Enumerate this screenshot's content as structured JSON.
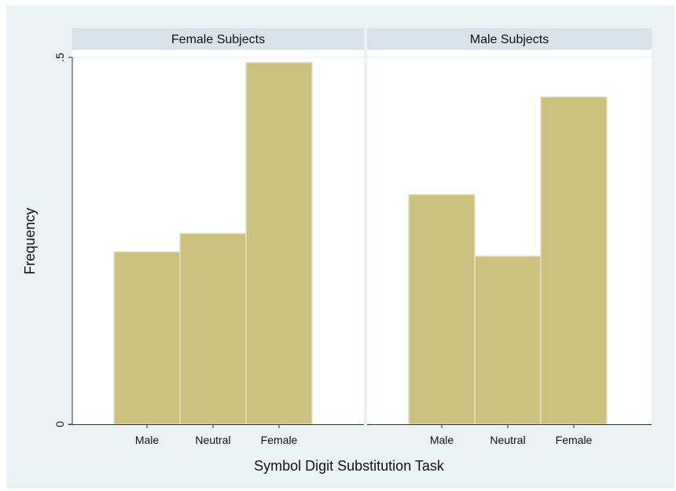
{
  "chart_data": {
    "type": "bar",
    "xlabel": "Symbol Digit Substitution Task",
    "ylabel": "Frequency",
    "ylim": [
      0,
      0.5
    ],
    "yticks": [
      {
        "value": 0,
        "label": "0"
      },
      {
        "value": 0.5,
        "label": ".5"
      }
    ],
    "categories": [
      "Male",
      "Neutral",
      "Female"
    ],
    "grid": true,
    "panels": [
      {
        "title": "Female Subjects",
        "values": [
          0.235,
          0.26,
          0.493
        ]
      },
      {
        "title": "Male Subjects",
        "values": [
          0.313,
          0.229,
          0.446
        ]
      }
    ],
    "colors": {
      "bar": "#cbc27f",
      "bar_edge": "#e6e0b8",
      "background": "#eaf2f3",
      "strip": "#d8e4e9"
    }
  }
}
